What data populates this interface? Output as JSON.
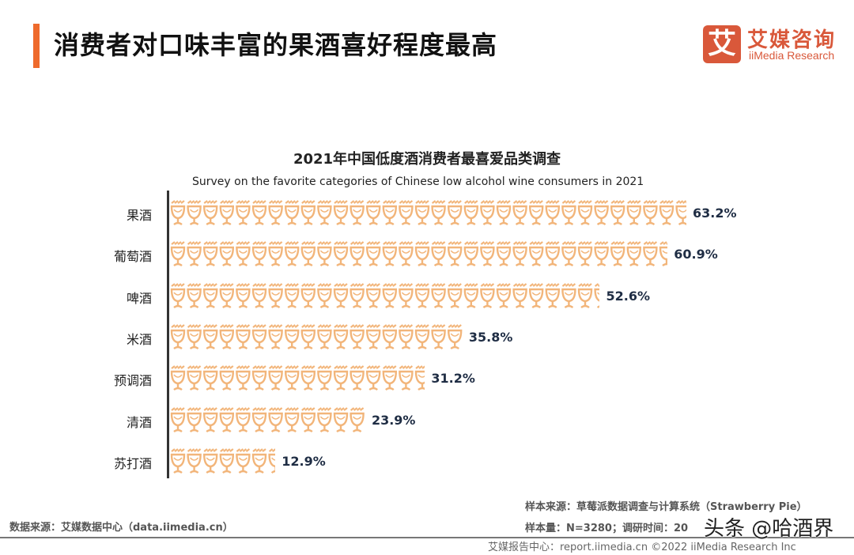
{
  "header": {
    "title": "消费者对口味丰富的果酒喜好程度最高",
    "accent_color": "#ee6a2c"
  },
  "logo": {
    "mark": "艾",
    "cn": "艾媒咨询",
    "en": "iiMedia Research",
    "color": "#d9583a"
  },
  "chart_data": {
    "type": "bar",
    "orientation": "horizontal",
    "mark": "goblet-icon pictogram",
    "title": "2021年中国低度酒消费者最喜爱品类调查",
    "subtitle": "Survey on the favorite categories of Chinese low alcohol wine consumers in 2021",
    "categories": [
      "果酒",
      "葡萄酒",
      "啤酒",
      "米酒",
      "预调酒",
      "清酒",
      "苏打酒"
    ],
    "values": [
      63.2,
      60.9,
      52.6,
      35.8,
      31.2,
      23.9,
      12.9
    ],
    "labels": [
      "63.2%",
      "60.9%",
      "52.6%",
      "35.8%",
      "31.2%",
      "23.9%",
      "12.9%"
    ],
    "unit": "%",
    "color": "#f2b57a",
    "grid": false
  },
  "footer": {
    "source": "数据来源：艾媒数据中心（data.iimedia.cn）",
    "sample_source": "样本来源：草莓派数据调查与计算系统（Strawberry Pie）",
    "sample_size": "样本量：N=3280；调研时间：20",
    "bottom": "艾媒报告中心：report.iimedia.cn   ©2022  iiMedia Research  Inc",
    "watermark": "头条 @哈酒界"
  }
}
